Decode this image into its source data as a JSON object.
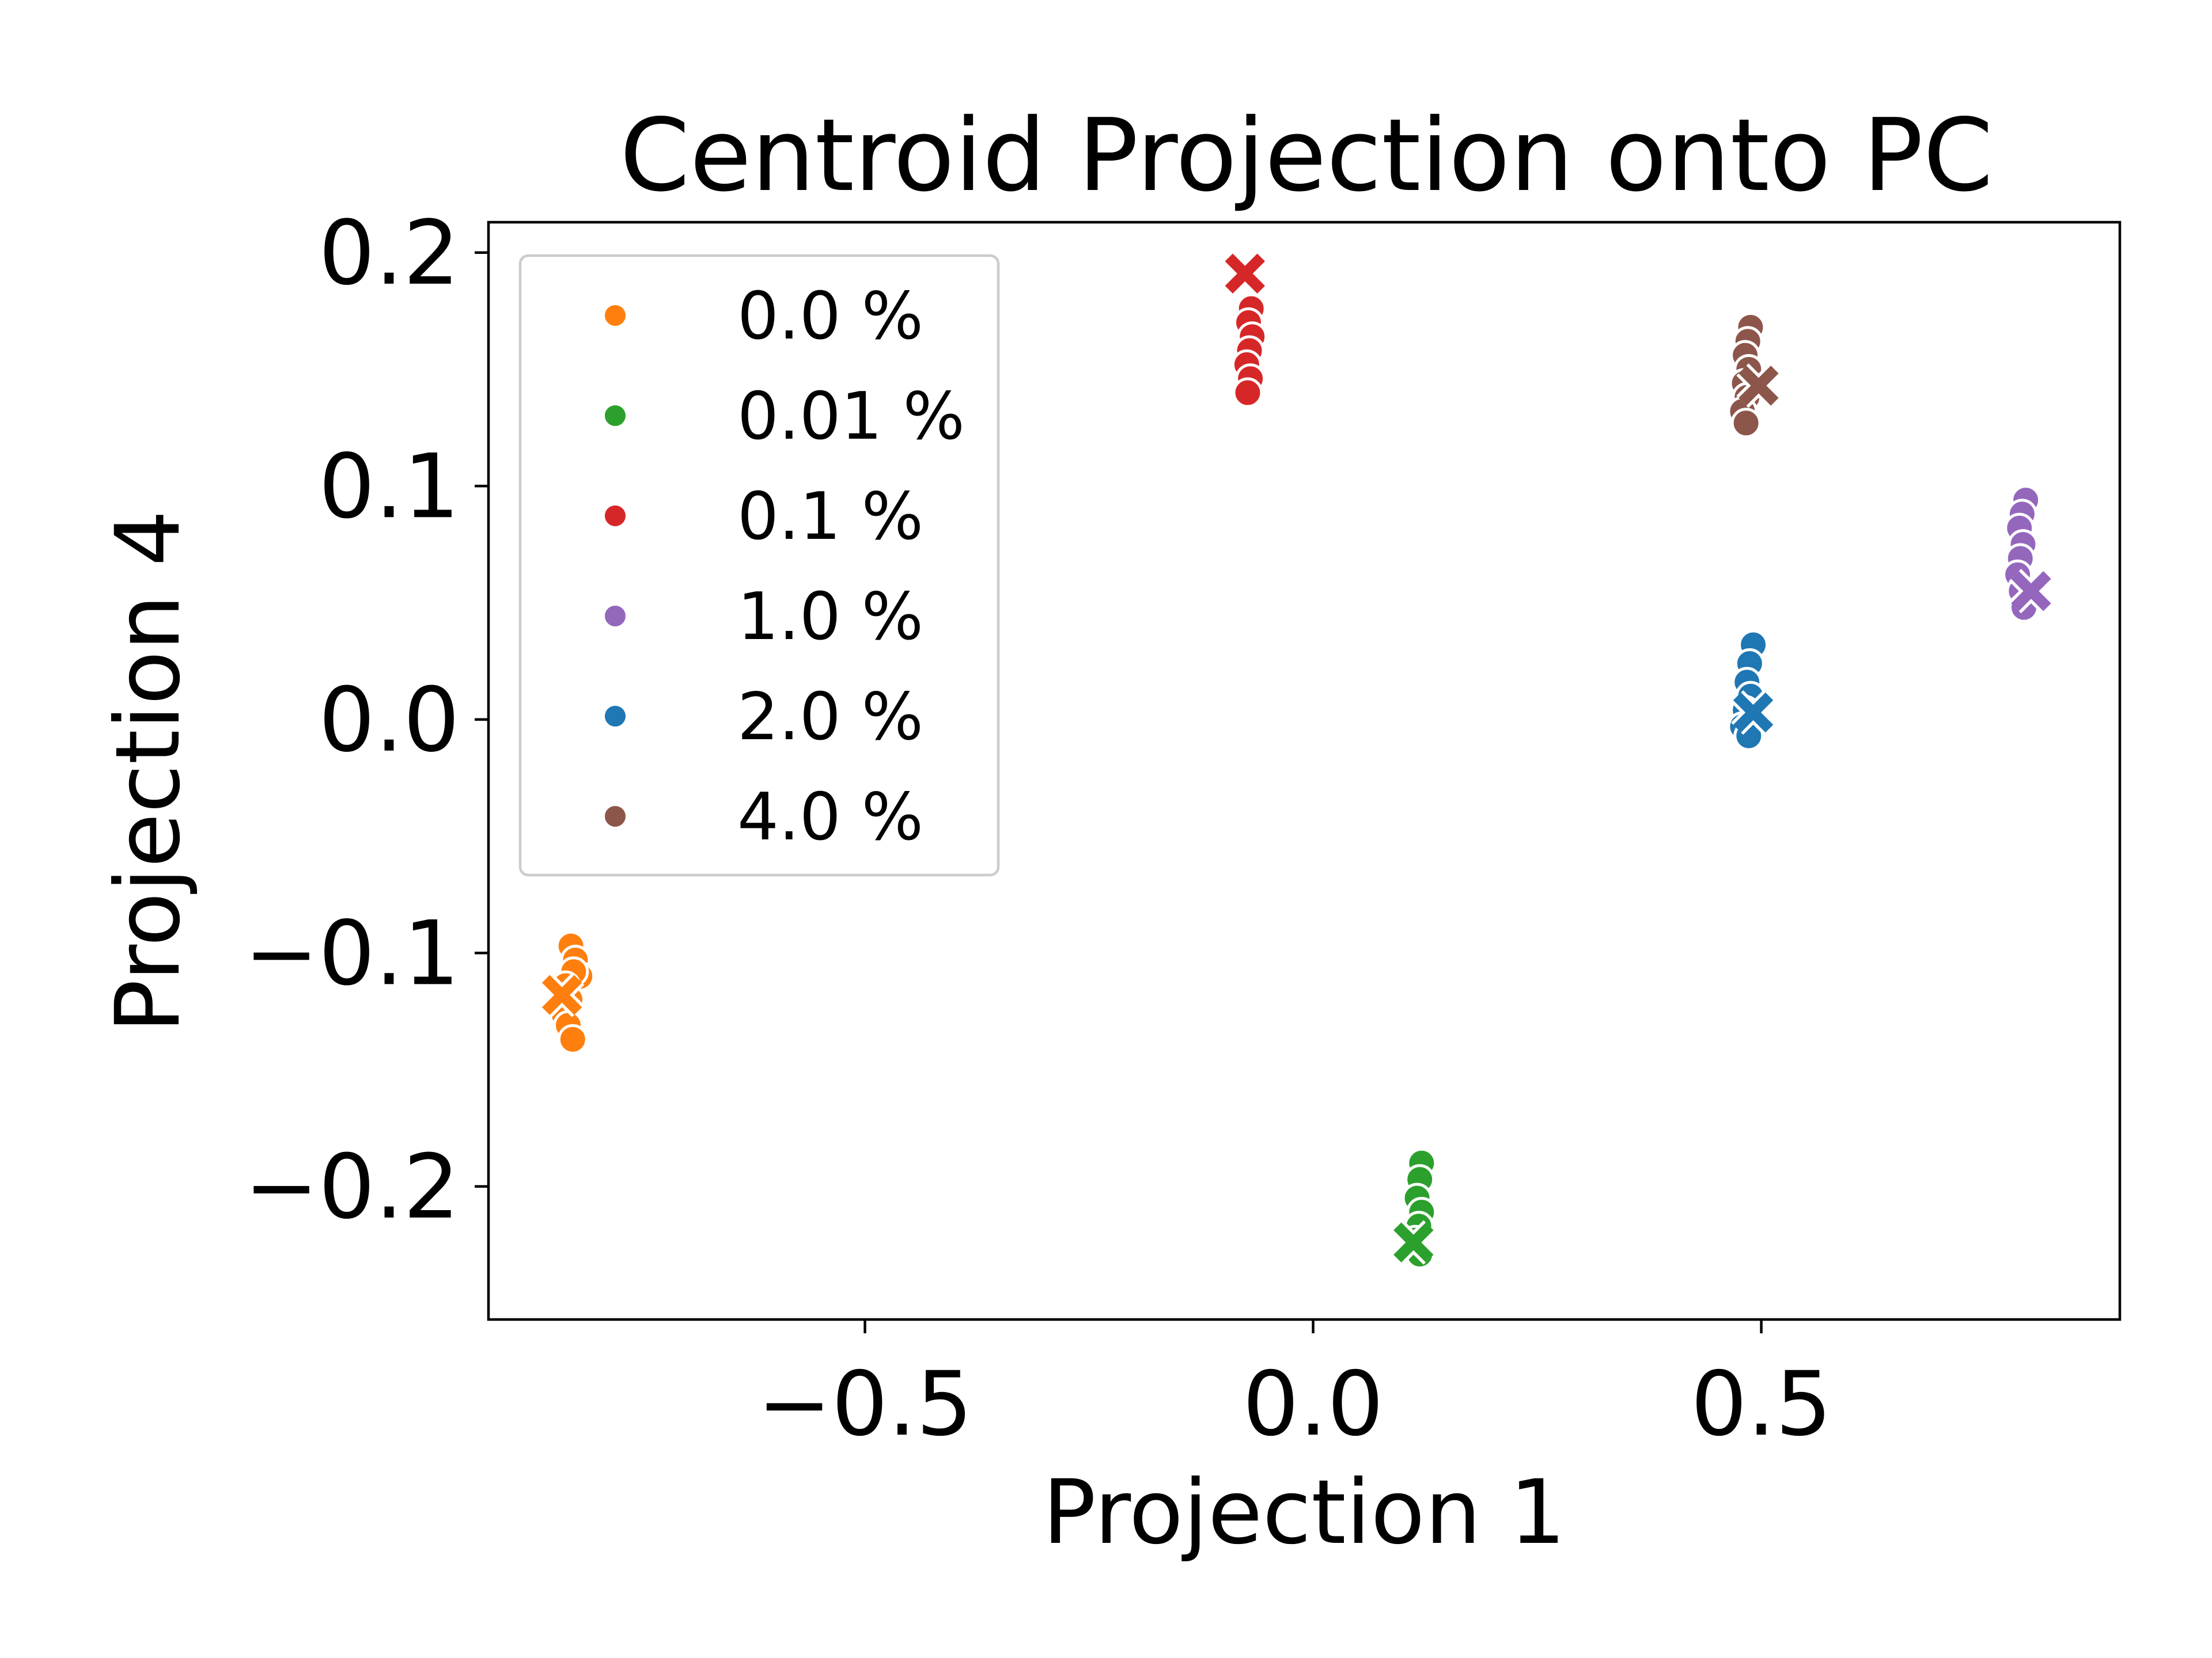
{
  "chart_data": {
    "type": "scatter",
    "title": "Centroid Projection onto PC",
    "xlabel": "Projection 1",
    "ylabel": "Projection 4",
    "xlim": [
      -0.92,
      0.9
    ],
    "ylim": [
      -0.257,
      0.213
    ],
    "xticks": [
      -0.5,
      0.0,
      0.5
    ],
    "xtick_labels": [
      "−0.5",
      "0.0",
      "0.5"
    ],
    "yticks": [
      -0.2,
      -0.1,
      0.0,
      0.1,
      0.2
    ],
    "ytick_labels": [
      "−0.2",
      "−0.1",
      "0.0",
      "0.1",
      "0.2"
    ],
    "grid": false,
    "legend_position": "upper-left",
    "series": [
      {
        "name": "0.0 %",
        "color": "#ff7f0e",
        "points": [
          [
            -0.828,
            -0.097
          ],
          [
            -0.823,
            -0.103
          ],
          [
            -0.818,
            -0.11
          ],
          [
            -0.825,
            -0.108
          ],
          [
            -0.834,
            -0.114
          ],
          [
            -0.829,
            -0.12
          ],
          [
            -0.836,
            -0.126
          ],
          [
            -0.831,
            -0.131
          ],
          [
            -0.826,
            -0.137
          ]
        ],
        "centroid": [
          -0.838,
          -0.118
        ]
      },
      {
        "name": "0.01 %",
        "color": "#2ca02c",
        "points": [
          [
            0.121,
            -0.19
          ],
          [
            0.119,
            -0.197
          ],
          [
            0.116,
            -0.205
          ],
          [
            0.121,
            -0.211
          ],
          [
            0.118,
            -0.217
          ],
          [
            0.114,
            -0.223
          ],
          [
            0.119,
            -0.229
          ]
        ],
        "centroid": [
          0.112,
          -0.224
        ]
      },
      {
        "name": "0.1 %",
        "color": "#d62728",
        "points": [
          [
            -0.069,
            0.176
          ],
          [
            -0.072,
            0.17
          ],
          [
            -0.068,
            0.164
          ],
          [
            -0.071,
            0.158
          ],
          [
            -0.074,
            0.152
          ],
          [
            -0.07,
            0.146
          ],
          [
            -0.073,
            0.14
          ]
        ],
        "centroid": [
          -0.076,
          0.191
        ]
      },
      {
        "name": "1.0 %",
        "color": "#9467bd",
        "points": [
          [
            0.795,
            0.094
          ],
          [
            0.791,
            0.088
          ],
          [
            0.788,
            0.082
          ],
          [
            0.792,
            0.075
          ],
          [
            0.789,
            0.069
          ],
          [
            0.786,
            0.062
          ],
          [
            0.79,
            0.055
          ],
          [
            0.793,
            0.048
          ]
        ],
        "centroid": [
          0.801,
          0.055
        ]
      },
      {
        "name": "2.0 %",
        "color": "#1f77b4",
        "points": [
          [
            0.491,
            0.032
          ],
          [
            0.487,
            0.024
          ],
          [
            0.484,
            0.016
          ],
          [
            0.488,
            0.01
          ],
          [
            0.482,
            0.004
          ],
          [
            0.479,
            -0.003
          ],
          [
            0.486,
            -0.007
          ]
        ],
        "centroid": [
          0.491,
          0.003
        ]
      },
      {
        "name": "4.0 %",
        "color": "#8c564b",
        "points": [
          [
            0.488,
            0.168
          ],
          [
            0.485,
            0.162
          ],
          [
            0.482,
            0.156
          ],
          [
            0.486,
            0.15
          ],
          [
            0.481,
            0.144
          ],
          [
            0.484,
            0.138
          ],
          [
            0.479,
            0.132
          ],
          [
            0.483,
            0.127
          ]
        ],
        "centroid": [
          0.497,
          0.143
        ]
      }
    ]
  }
}
